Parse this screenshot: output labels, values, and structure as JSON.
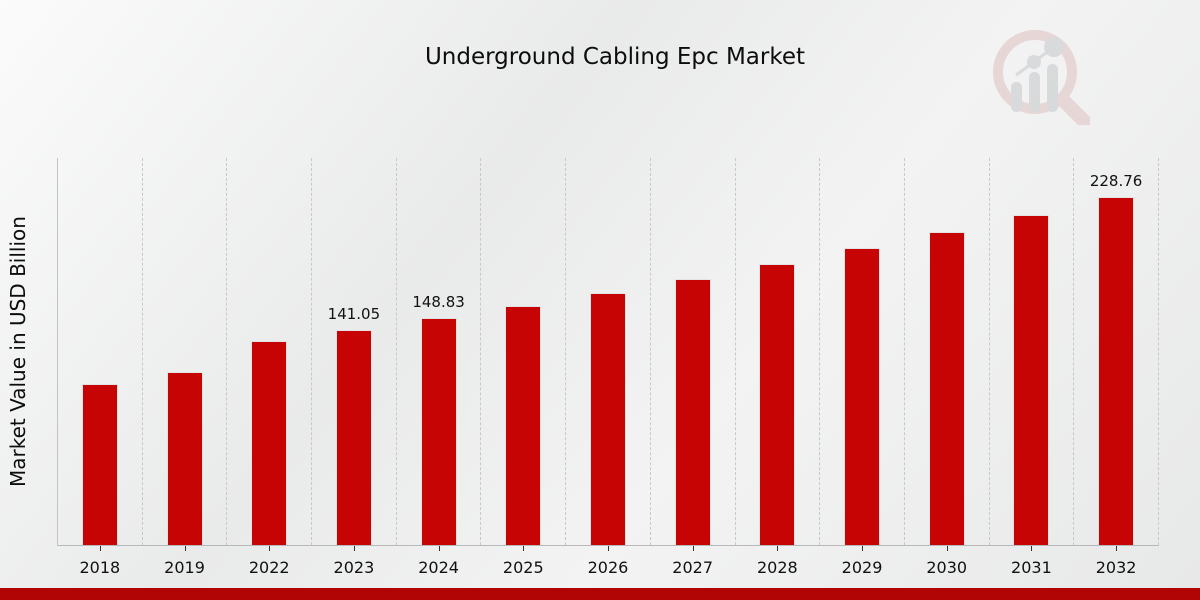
{
  "chart_data": {
    "type": "bar",
    "title": "Underground Cabling Epc Market",
    "xlabel": "",
    "ylabel": "Market Value in USD Billion",
    "categories": [
      "2018",
      "2019",
      "2022",
      "2023",
      "2024",
      "2025",
      "2026",
      "2027",
      "2028",
      "2029",
      "2030",
      "2031",
      "2032"
    ],
    "values": [
      106.0,
      113.9,
      133.7,
      141.05,
      148.83,
      157.0,
      165.7,
      174.9,
      184.5,
      194.7,
      205.4,
      216.8,
      228.76
    ],
    "data_labels": [
      "",
      "",
      "",
      "141.05",
      "148.83",
      "",
      "",
      "",
      "",
      "",
      "",
      "",
      "228.76"
    ],
    "ylim": [
      0,
      254
    ],
    "grid": "vertical-dashed",
    "legend": "none",
    "bar_color": "#c70404"
  },
  "branding": {
    "logo_icon": "magnifier-bar-chart-watermark",
    "footer_stripe_color": "#b10404"
  }
}
